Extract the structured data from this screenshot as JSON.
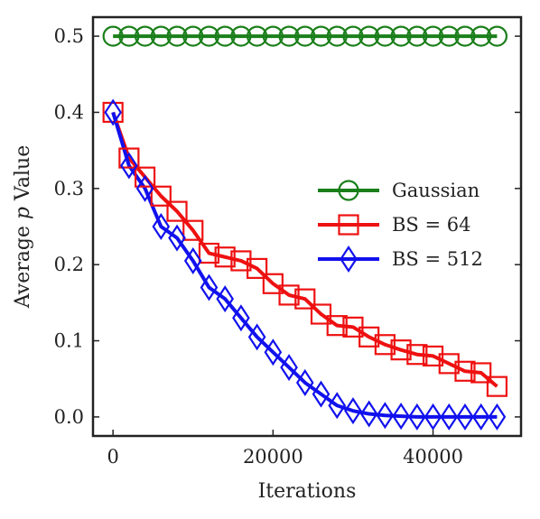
{
  "chart_data": {
    "type": "line",
    "title": "",
    "xlabel": "Iterations",
    "ylabel": "Average p Value",
    "ylabel_parts": {
      "pre": "Average ",
      "var": "p",
      "post": " Value"
    },
    "xlim": [
      -2500,
      51000
    ],
    "ylim": [
      -0.025,
      0.525
    ],
    "xticks": [
      0,
      20000,
      40000
    ],
    "yticks": [
      0.0,
      0.1,
      0.2,
      0.3,
      0.4,
      0.5
    ],
    "ytick_labels": [
      "0.0",
      "0.1",
      "0.2",
      "0.3",
      "0.4",
      "0.5"
    ],
    "grid": false,
    "legend_position": "center-right",
    "series": [
      {
        "name": "Gaussian",
        "color": "#1a7f1a",
        "marker": "circle",
        "x": [
          0,
          2000,
          4000,
          6000,
          8000,
          10000,
          12000,
          14000,
          16000,
          18000,
          20000,
          22000,
          24000,
          26000,
          28000,
          30000,
          32000,
          34000,
          36000,
          38000,
          40000,
          42000,
          44000,
          46000,
          48000
        ],
        "values": [
          0.5,
          0.5,
          0.5,
          0.5,
          0.5,
          0.5,
          0.5,
          0.5,
          0.5,
          0.5,
          0.5,
          0.5,
          0.5,
          0.5,
          0.5,
          0.5,
          0.5,
          0.5,
          0.5,
          0.5,
          0.5,
          0.5,
          0.5,
          0.5,
          0.5
        ]
      },
      {
        "name": "BS = 64",
        "color": "#ee1111",
        "marker": "square",
        "x": [
          0,
          2000,
          4000,
          6000,
          8000,
          10000,
          12000,
          14000,
          16000,
          18000,
          20000,
          22000,
          24000,
          26000,
          28000,
          30000,
          32000,
          34000,
          36000,
          38000,
          40000,
          42000,
          44000,
          46000,
          48000
        ],
        "values": [
          0.4,
          0.34,
          0.315,
          0.29,
          0.27,
          0.245,
          0.215,
          0.21,
          0.205,
          0.195,
          0.175,
          0.16,
          0.155,
          0.135,
          0.12,
          0.118,
          0.105,
          0.095,
          0.088,
          0.082,
          0.08,
          0.07,
          0.06,
          0.058,
          0.04
        ]
      },
      {
        "name": "BS = 512",
        "color": "#1111ee",
        "marker": "diamond",
        "x": [
          0,
          2000,
          4000,
          6000,
          8000,
          10000,
          12000,
          14000,
          16000,
          18000,
          20000,
          22000,
          24000,
          26000,
          28000,
          30000,
          32000,
          34000,
          36000,
          38000,
          40000,
          42000,
          44000,
          46000,
          48000
        ],
        "values": [
          0.4,
          0.33,
          0.3,
          0.25,
          0.235,
          0.205,
          0.17,
          0.155,
          0.13,
          0.105,
          0.085,
          0.065,
          0.045,
          0.03,
          0.015,
          0.008,
          0.004,
          0.002,
          0.001,
          0.0,
          0.0,
          0.0,
          0.0,
          0.0,
          0.0
        ]
      }
    ]
  }
}
